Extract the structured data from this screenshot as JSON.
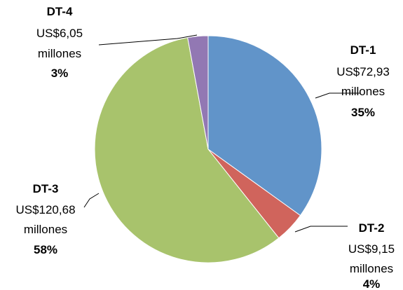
{
  "chart_data": {
    "type": "pie",
    "title": "",
    "slices": [
      {
        "name": "DT-1",
        "amount": "US$72,93",
        "unit": "millones",
        "percent": "35%",
        "value": 72.93,
        "color": "#6194c9"
      },
      {
        "name": "DT-2",
        "amount": "US$9,15",
        "unit": "millones",
        "percent": "4%",
        "value": 9.15,
        "color": "#d0645c"
      },
      {
        "name": "DT-3",
        "amount": "US$120,68",
        "unit": "millones",
        "percent": "58%",
        "value": 120.68,
        "color": "#a8c36c"
      },
      {
        "name": "DT-4",
        "amount": "US$6,05",
        "unit": "millones",
        "percent": "3%",
        "value": 6.05,
        "color": "#9278b3"
      }
    ],
    "start_angle_deg": 0,
    "direction": "clockwise",
    "legend": "none"
  }
}
